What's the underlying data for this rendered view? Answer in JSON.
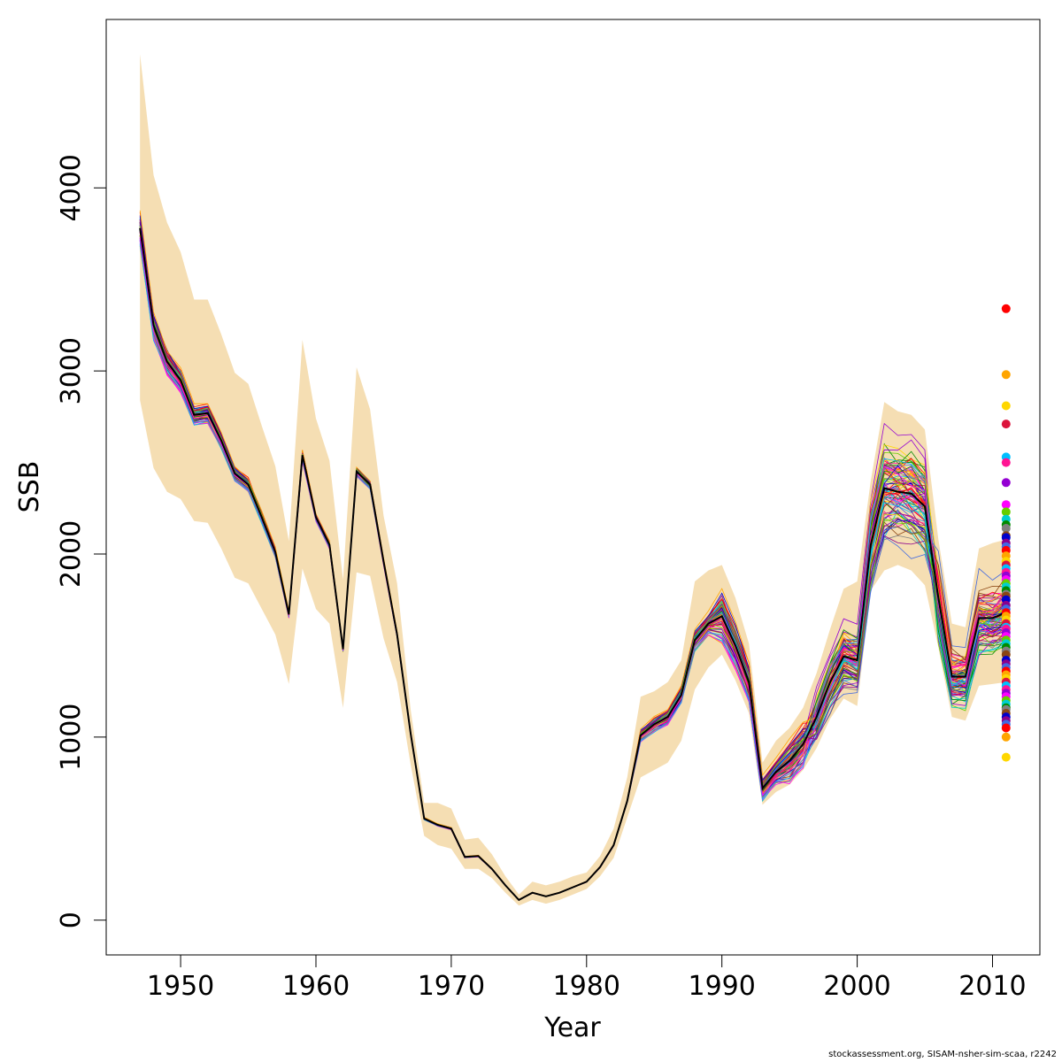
{
  "chart_data": {
    "type": "line",
    "xlabel": "Year",
    "ylabel": "SSB",
    "xlim": [
      1944.5,
      2013.5
    ],
    "ylim": [
      -190,
      4920
    ],
    "x_ticks": [
      1950,
      1960,
      1970,
      1980,
      1990,
      2000,
      2010
    ],
    "y_ticks": [
      0,
      1000,
      2000,
      3000,
      4000
    ],
    "x_tick_labels": [
      "1950",
      "1960",
      "1970",
      "1980",
      "1990",
      "2000",
      "2010"
    ],
    "y_tick_labels": [
      "0",
      "1000",
      "2000",
      "3000",
      "4000"
    ],
    "grid": false,
    "legend": "none",
    "colors": {
      "band": "#f5deb3",
      "main": "#000000",
      "palette": [
        "#ff0000",
        "#0000cd",
        "#008b00",
        "#ff00ff",
        "#00bfff",
        "#ffa500",
        "#8b008b",
        "#7f7f7f",
        "#66cd00",
        "#ff1493",
        "#ffd700",
        "#4169e1",
        "#8b4513",
        "#00ced1",
        "#9400d3",
        "#dc143c"
      ]
    },
    "years": [
      1947,
      1948,
      1949,
      1950,
      1951,
      1952,
      1953,
      1954,
      1955,
      1956,
      1957,
      1958,
      1959,
      1960,
      1961,
      1962,
      1963,
      1964,
      1965,
      1966,
      1967,
      1968,
      1969,
      1970,
      1971,
      1972,
      1973,
      1974,
      1975,
      1976,
      1977,
      1978,
      1979,
      1980,
      1981,
      1982,
      1983,
      1984,
      1985,
      1986,
      1987,
      1988,
      1989,
      1990,
      1991,
      1992,
      1993,
      1994,
      1995,
      1996,
      1997,
      1998,
      1999,
      2000,
      2001,
      2002,
      2003,
      2004,
      2005,
      2006,
      2007,
      2008,
      2009,
      2010,
      2011
    ],
    "ssb": [
      3780,
      3250,
      3050,
      2950,
      2760,
      2770,
      2620,
      2440,
      2380,
      2200,
      2010,
      1670,
      2540,
      2200,
      2050,
      1480,
      2450,
      2380,
      1960,
      1560,
      1020,
      555,
      520,
      500,
      345,
      350,
      280,
      190,
      110,
      150,
      130,
      150,
      180,
      210,
      290,
      410,
      650,
      1010,
      1070,
      1110,
      1230,
      1530,
      1620,
      1660,
      1500,
      1300,
      720,
      810,
      870,
      960,
      1110,
      1300,
      1440,
      1420,
      2050,
      2360,
      2340,
      2330,
      2260,
      1760,
      1330,
      1330,
      1650,
      1650,
      1680
    ],
    "band_low": [
      2840,
      2470,
      2340,
      2300,
      2180,
      2170,
      2030,
      1870,
      1840,
      1700,
      1560,
      1290,
      1920,
      1700,
      1620,
      1160,
      1900,
      1880,
      1540,
      1300,
      850,
      460,
      410,
      390,
      280,
      280,
      230,
      150,
      80,
      110,
      90,
      110,
      140,
      170,
      240,
      340,
      560,
      780,
      820,
      860,
      980,
      1260,
      1380,
      1450,
      1310,
      1130,
      630,
      700,
      740,
      820,
      940,
      1100,
      1210,
      1170,
      1800,
      1910,
      1940,
      1910,
      1830,
      1490,
      1110,
      1090,
      1280,
      1290,
      1300
    ],
    "band_high": [
      4730,
      4070,
      3810,
      3650,
      3390,
      3390,
      3200,
      2990,
      2930,
      2700,
      2480,
      2070,
      3170,
      2740,
      2510,
      1860,
      3020,
      2790,
      2210,
      1840,
      1150,
      640,
      640,
      610,
      440,
      450,
      360,
      240,
      140,
      210,
      190,
      210,
      240,
      260,
      350,
      500,
      780,
      1220,
      1250,
      1300,
      1420,
      1850,
      1910,
      1940,
      1760,
      1510,
      860,
      980,
      1050,
      1160,
      1350,
      1590,
      1810,
      1850,
      2400,
      2830,
      2780,
      2760,
      2680,
      2080,
      1620,
      1600,
      2030,
      2060,
      2080
    ],
    "retro_endpoints": [
      3340,
      2980,
      2810,
      2710,
      2530,
      2500,
      2390,
      2270,
      2230,
      2190,
      2160,
      2140,
      2100,
      2090,
      2060,
      2040,
      2020,
      1990,
      1960,
      1940,
      1920,
      1900,
      1880,
      1860,
      1840,
      1820,
      1800,
      1780,
      1770,
      1750,
      1720,
      1700,
      1680,
      1660,
      1640,
      1620,
      1600,
      1590,
      1570,
      1550,
      1530,
      1510,
      1490,
      1470,
      1450,
      1420,
      1400,
      1380,
      1360,
      1340,
      1320,
      1300,
      1280,
      1260,
      1240,
      1220,
      1200,
      1180,
      1160,
      1150,
      1130,
      1110,
      1090,
      1070,
      1050,
      1000,
      890
    ],
    "footnote": "stockassessment.org, SISAM-nsher-sim-scaa, r2242"
  }
}
